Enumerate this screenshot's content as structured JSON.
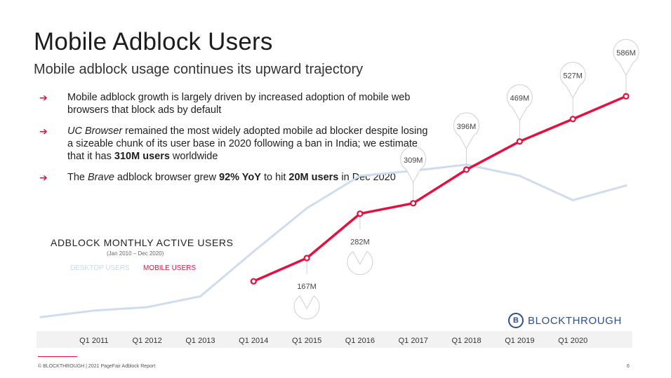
{
  "header": {
    "title": "Mobile Adblock Users",
    "subtitle": "Mobile adblock usage continues its upward trajectory"
  },
  "bullets": [
    {
      "parts": [
        {
          "t": "Mobile adblock growth is largely driven by increased adoption of mobile web browsers that block ads by default"
        }
      ]
    },
    {
      "parts": [
        {
          "t": "UC Browser",
          "i": true
        },
        {
          "t": " remained the most widely adopted mobile ad blocker despite losing a sizeable chunk of its user base in 2020 following a ban in India; we estimate that it has "
        },
        {
          "t": "310M users",
          "b": true
        },
        {
          "t": " worldwide"
        }
      ]
    },
    {
      "parts": [
        {
          "t": "The "
        },
        {
          "t": "Brave",
          "i": true
        },
        {
          "t": " adblock browser grew "
        },
        {
          "t": "92% YoY",
          "b": true
        },
        {
          "t": " to hit "
        },
        {
          "t": "20M users",
          "b": true
        },
        {
          "t": " in Dec 2020"
        }
      ]
    }
  ],
  "bullet_arrow": "➔",
  "chart_data": {
    "type": "line",
    "title": "ADBLOCK MONTHLY ACTIVE USERS",
    "subtitle": "(Jan 2010 – Dec 2020)",
    "x": [
      2010.0,
      2011.0,
      2012.0,
      2013.0,
      2014.0,
      2015.0,
      2016.0,
      2017.0,
      2018.0,
      2019.0,
      2020.0,
      2021.0
    ],
    "xlim": [
      2010.0,
      2021.0
    ],
    "ylim": [
      0,
      650
    ],
    "tick_positions": [
      2011,
      2012,
      2013,
      2014,
      2015,
      2016,
      2017,
      2018,
      2019,
      2020
    ],
    "tick_labels": [
      "Q1 2011",
      "Q1 2012",
      "Q1 2013",
      "Q1 2014",
      "Q1 2015",
      "Q1 2016",
      "Q1 2017",
      "Q1 2018",
      "Q1 2019",
      "Q1 2020"
    ],
    "series": [
      {
        "name": "DESKTOP USERS",
        "color": "#cfdcef",
        "x": [
          2010.0,
          2011.0,
          2012.0,
          2013.0,
          2014.0,
          2015.0,
          2016.0,
          2017.0,
          2018.0,
          2019.0,
          2020.0,
          2021.0
        ],
        "values": [
          14,
          31,
          40,
          68,
          184,
          296,
          380,
          393,
          409,
          380,
          317,
          355
        ]
      },
      {
        "name": "MOBILE USERS",
        "color": "#e4103f",
        "x": [
          2014.0,
          2015.0,
          2016.0,
          2017.0,
          2018.0,
          2019.0,
          2020.0,
          2021.0
        ],
        "values": [
          107,
          167,
          282,
          309,
          396,
          469,
          527,
          586
        ],
        "labels": [
          "",
          "167M",
          "282M",
          "309M",
          "396M",
          "469M",
          "527M",
          "586M"
        ],
        "label_side": [
          "",
          "below",
          "below",
          "above",
          "above",
          "above",
          "above",
          "above"
        ]
      }
    ],
    "legend_position": "top-left",
    "grid": false
  },
  "logo": {
    "mark": "B",
    "text": "BLOCKTHROUGH"
  },
  "footer": {
    "text": "© BLOCKTHROUGH | 2021 PageFair Adblock Report",
    "page": "6"
  }
}
